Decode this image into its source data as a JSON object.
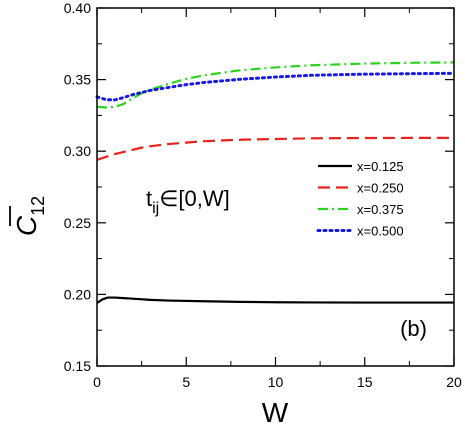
{
  "chart_data": {
    "type": "line",
    "xlabel": "W",
    "ylabel": "C̅12",
    "ylabel_main": "C",
    "ylabel_sub": "12",
    "xlim": [
      0,
      20
    ],
    "ylim": [
      0.15,
      0.4
    ],
    "xticks": [
      0,
      5,
      10,
      15,
      20
    ],
    "xtick_labels": [
      "0",
      "5",
      "10",
      "15",
      "20"
    ],
    "yticks": [
      0.15,
      0.2,
      0.25,
      0.3,
      0.35,
      0.4
    ],
    "ytick_labels": [
      "0.15",
      "0.20",
      "0.25",
      "0.30",
      "0.35",
      "0.40"
    ],
    "legend_position": "right",
    "grid": false,
    "annotation_formula": {
      "t": "t",
      "sub": "ij",
      "rest": "∈[0,W]"
    },
    "annotation_panel": "(b)",
    "series": [
      {
        "name": "x=0.125",
        "color": "#000000",
        "dash": "solid",
        "x": [
          0,
          0.3,
          0.6,
          1.0,
          1.5,
          2,
          3,
          4,
          6,
          8,
          10,
          12,
          15,
          18,
          20
        ],
        "y": [
          0.194,
          0.1965,
          0.1978,
          0.1978,
          0.1974,
          0.197,
          0.1962,
          0.1957,
          0.1952,
          0.1948,
          0.1945,
          0.1944,
          0.1943,
          0.1943,
          0.1943
        ]
      },
      {
        "name": "x=0.250",
        "color": "#e8221c",
        "dash": "dashed",
        "x": [
          0,
          0.5,
          1,
          1.5,
          2,
          2.5,
          3,
          4,
          5,
          6,
          8,
          10,
          12,
          15,
          18,
          20
        ],
        "y": [
          0.294,
          0.296,
          0.298,
          0.2995,
          0.301,
          0.3025,
          0.3035,
          0.305,
          0.306,
          0.307,
          0.308,
          0.3085,
          0.309,
          0.3092,
          0.3093,
          0.3093
        ]
      },
      {
        "name": "x=0.375",
        "color": "#2bd41d",
        "dash": "dashdot",
        "x": [
          0,
          0.5,
          1,
          1.5,
          2,
          2.5,
          3,
          4,
          5,
          6,
          8,
          10,
          12,
          15,
          18,
          20
        ],
        "y": [
          0.331,
          0.3305,
          0.331,
          0.333,
          0.337,
          0.3405,
          0.343,
          0.347,
          0.3505,
          0.353,
          0.3565,
          0.3585,
          0.36,
          0.3612,
          0.3618,
          0.362
        ]
      },
      {
        "name": "x=0.500",
        "color": "#1a1adf",
        "dash": "dotted",
        "x": [
          0,
          0.5,
          1,
          1.5,
          2,
          2.5,
          3,
          4,
          5,
          6,
          8,
          10,
          12,
          15,
          18,
          20
        ],
        "y": [
          0.338,
          0.336,
          0.3358,
          0.3375,
          0.3395,
          0.341,
          0.3425,
          0.3445,
          0.3465,
          0.348,
          0.3502,
          0.3518,
          0.353,
          0.3538,
          0.3542,
          0.3544
        ]
      }
    ]
  }
}
